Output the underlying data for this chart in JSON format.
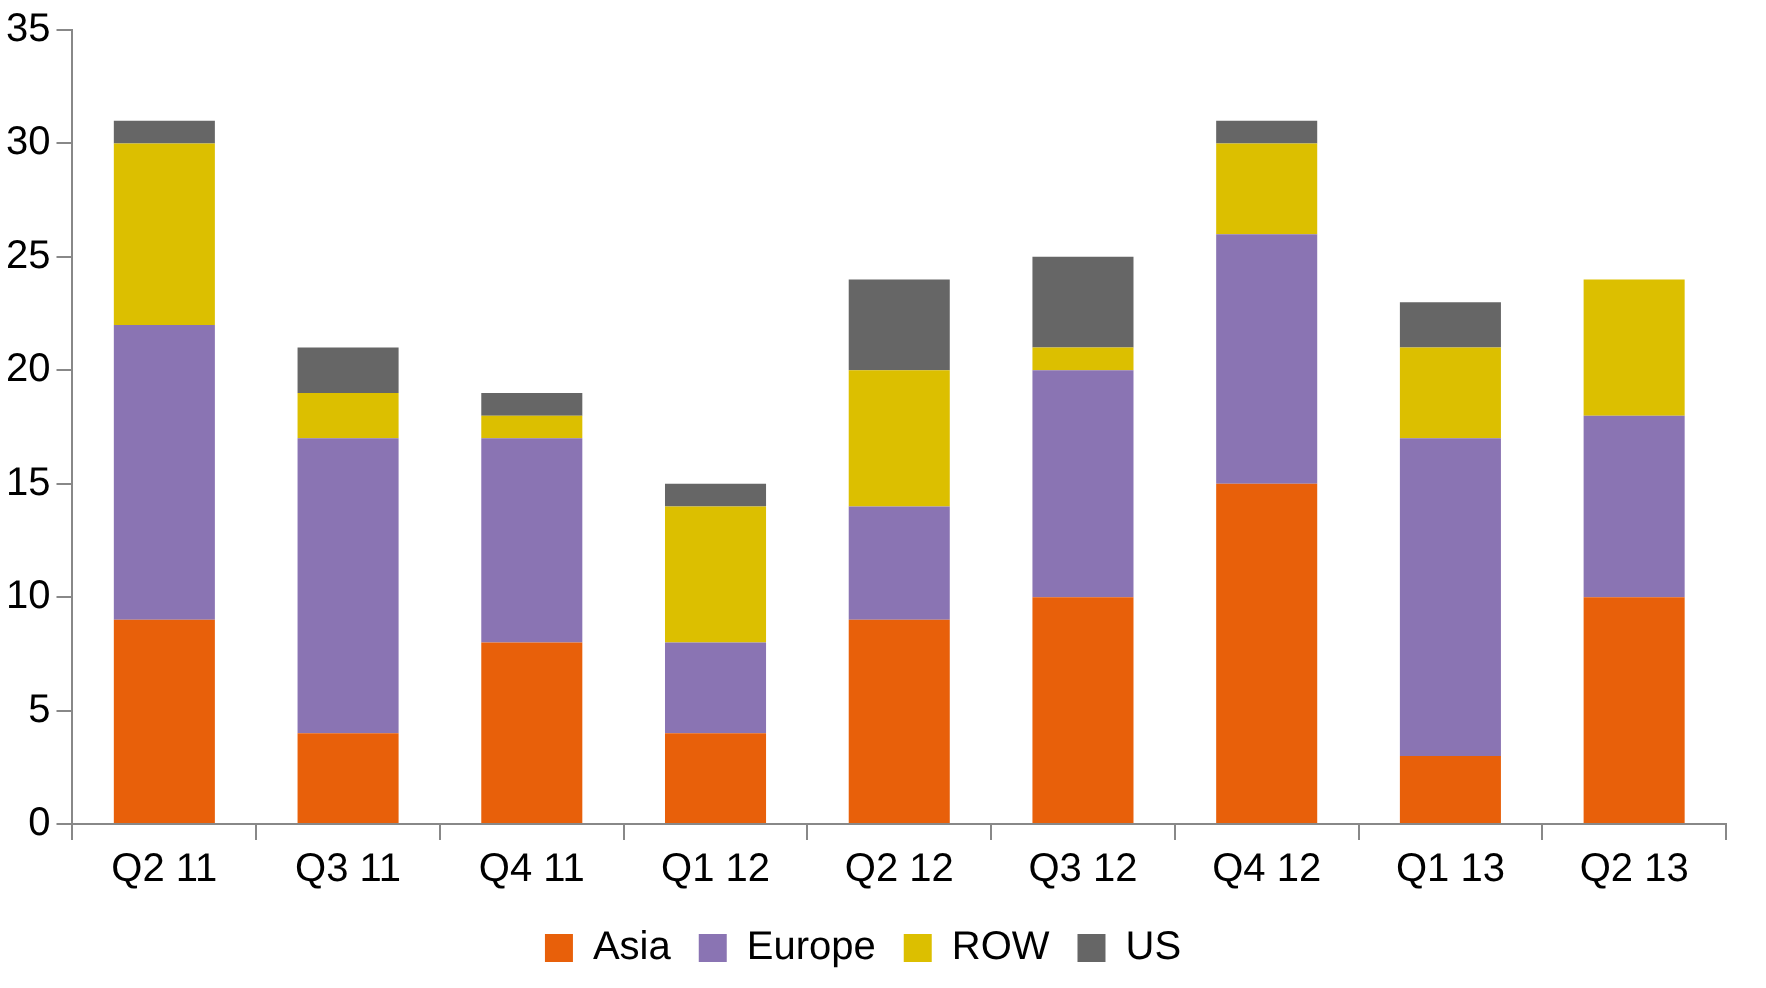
{
  "chart_data": {
    "type": "bar",
    "stacked": true,
    "categories": [
      "Q2 11",
      "Q3 11",
      "Q4 11",
      "Q1 12",
      "Q2 12",
      "Q3 12",
      "Q4 12",
      "Q1 13",
      "Q2 13"
    ],
    "series": [
      {
        "name": "Asia",
        "color": "#e8600a",
        "values": [
          9,
          4,
          8,
          4,
          9,
          10,
          15,
          3,
          10
        ]
      },
      {
        "name": "Europe",
        "color": "#8a74b3",
        "values": [
          13,
          13,
          9,
          4,
          5,
          10,
          11,
          14,
          8
        ]
      },
      {
        "name": "ROW",
        "color": "#dcbf00",
        "values": [
          8,
          2,
          1,
          6,
          6,
          1,
          4,
          4,
          6
        ]
      },
      {
        "name": "US",
        "color": "#666666",
        "values": [
          1,
          2,
          1,
          1,
          4,
          4,
          1,
          2,
          0
        ]
      }
    ],
    "ylim": [
      0,
      35
    ],
    "yticks": [
      0,
      5,
      10,
      15,
      20,
      25,
      30,
      35
    ],
    "grid": false,
    "legend": "bottom"
  }
}
